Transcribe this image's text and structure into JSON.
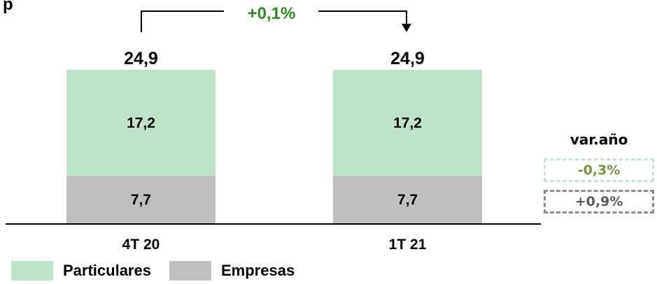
{
  "chart_data": {
    "type": "bar",
    "stacked": true,
    "categories": [
      "4T 20",
      "1T 21"
    ],
    "series": [
      {
        "name": "Particulares",
        "values": [
          17.2,
          17.2
        ],
        "labels": [
          "17,2",
          "17,2"
        ],
        "color": "#bfe3c9"
      },
      {
        "name": "Empresas",
        "values": [
          7.7,
          7.7
        ],
        "labels": [
          "7,7",
          "7,7"
        ],
        "color": "#bfbfbf"
      }
    ],
    "totals": [
      24.9,
      24.9
    ],
    "total_labels": [
      "24,9",
      "24,9"
    ],
    "change_label": "+0,1%",
    "change_color": "#2e8b1f",
    "ylim": [
      0,
      24.9
    ],
    "title_fragment": "p",
    "var_year": {
      "title": "var.año",
      "particulares": {
        "text": "-0,3%",
        "color": "#76933c",
        "border": "#c7e6d2"
      },
      "empresas": {
        "text": "+0,9%",
        "color": "#595959",
        "border": "#8c8c8c"
      }
    },
    "legend": [
      {
        "label": "Particulares",
        "color": "#bfe3c9"
      },
      {
        "label": "Empresas",
        "color": "#bfbfbf"
      }
    ]
  }
}
